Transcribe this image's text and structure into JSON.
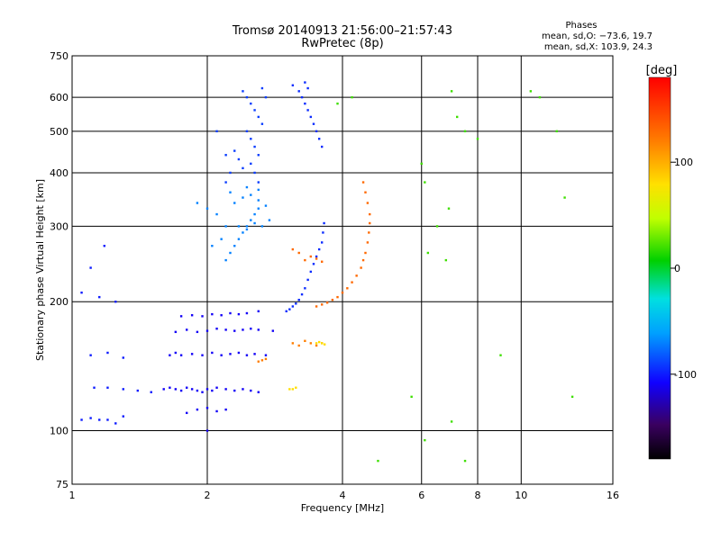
{
  "chart_data": {
    "type": "scatter",
    "title": "Tromsø 20140913 21:56:00–21:57:43",
    "subtitle": "RwPretec (8p)",
    "xlabel": "Frequency [MHz]",
    "ylabel": "Stationary phase Virtual Height [km]",
    "x_scale": "log",
    "y_scale": "log",
    "xlim": [
      1,
      16
    ],
    "ylim": [
      75,
      750
    ],
    "x_ticks": [
      1,
      2,
      4,
      6,
      8,
      10,
      16
    ],
    "y_ticks": [
      75,
      100,
      200,
      300,
      400,
      500,
      600,
      750
    ],
    "x_gridlines": [
      2,
      4,
      6,
      8,
      10
    ],
    "y_gridlines": [
      100,
      200,
      300,
      400,
      500,
      600
    ],
    "grid": true,
    "stats": {
      "title": "Phases",
      "line_o": "mean, sd,O: −73.6, 19.7",
      "line_x": "mean, sd,X: 103.9, 24.3"
    },
    "colorbar": {
      "label": "[deg]",
      "range": [
        -180,
        180
      ],
      "ticks": [
        100,
        0,
        -100
      ],
      "palette": "rainbow"
    },
    "series": [
      {
        "trace": "low-frequency echoes near 100–130 km",
        "phase": -100,
        "points": [
          [
            1.05,
            106
          ],
          [
            1.1,
            107
          ],
          [
            1.15,
            106
          ],
          [
            1.2,
            106
          ],
          [
            1.25,
            104
          ],
          [
            1.3,
            108
          ],
          [
            1.12,
            126
          ],
          [
            1.2,
            126
          ],
          [
            1.3,
            125
          ],
          [
            1.4,
            124
          ],
          [
            1.5,
            123
          ],
          [
            1.1,
            150
          ],
          [
            1.2,
            152
          ],
          [
            1.3,
            148
          ],
          [
            1.05,
            210
          ],
          [
            1.15,
            205
          ],
          [
            1.1,
            240
          ],
          [
            1.18,
            270
          ],
          [
            1.25,
            200
          ]
        ]
      },
      {
        "trace": "O-mode staircase 1.6–2.8 MHz",
        "phase": -110,
        "points": [
          [
            1.6,
            125
          ],
          [
            1.65,
            126
          ],
          [
            1.7,
            125
          ],
          [
            1.75,
            124
          ],
          [
            1.8,
            126
          ],
          [
            1.85,
            125
          ],
          [
            1.9,
            124
          ],
          [
            1.95,
            123
          ],
          [
            2.0,
            125
          ],
          [
            2.05,
            124
          ],
          [
            2.1,
            126
          ],
          [
            2.2,
            125
          ],
          [
            2.3,
            124
          ],
          [
            2.4,
            125
          ],
          [
            2.5,
            124
          ],
          [
            2.6,
            123
          ],
          [
            1.65,
            150
          ],
          [
            1.7,
            152
          ],
          [
            1.75,
            150
          ],
          [
            1.85,
            151
          ],
          [
            1.95,
            150
          ],
          [
            2.05,
            152
          ],
          [
            2.15,
            150
          ],
          [
            2.25,
            151
          ],
          [
            2.35,
            152
          ],
          [
            2.45,
            150
          ],
          [
            2.55,
            151
          ],
          [
            2.7,
            150
          ],
          [
            1.7,
            170
          ],
          [
            1.8,
            172
          ],
          [
            1.9,
            170
          ],
          [
            2.0,
            171
          ],
          [
            2.1,
            173
          ],
          [
            2.2,
            172
          ],
          [
            2.3,
            171
          ],
          [
            2.4,
            172
          ],
          [
            2.5,
            173
          ],
          [
            2.6,
            172
          ],
          [
            2.8,
            171
          ],
          [
            1.75,
            185
          ],
          [
            1.85,
            186
          ],
          [
            1.95,
            185
          ],
          [
            2.05,
            187
          ],
          [
            2.15,
            186
          ],
          [
            2.25,
            188
          ],
          [
            2.35,
            187
          ],
          [
            2.45,
            188
          ],
          [
            2.6,
            190
          ],
          [
            1.8,
            110
          ],
          [
            1.9,
            112
          ],
          [
            2.0,
            113
          ],
          [
            2.1,
            111
          ],
          [
            2.2,
            112
          ],
          [
            2.0,
            100
          ]
        ]
      },
      {
        "trace": "F-region echoes 250–350 km",
        "phase": -70,
        "points": [
          [
            2.2,
            250
          ],
          [
            2.25,
            260
          ],
          [
            2.3,
            270
          ],
          [
            2.35,
            280
          ],
          [
            2.4,
            290
          ],
          [
            2.45,
            300
          ],
          [
            2.5,
            310
          ],
          [
            2.55,
            320
          ],
          [
            2.6,
            330
          ],
          [
            2.3,
            340
          ],
          [
            2.4,
            350
          ],
          [
            2.5,
            355
          ],
          [
            2.6,
            345
          ],
          [
            2.7,
            335
          ],
          [
            2.35,
            300
          ],
          [
            2.45,
            295
          ],
          [
            2.55,
            305
          ],
          [
            2.65,
            300
          ],
          [
            2.75,
            310
          ],
          [
            2.2,
            300
          ],
          [
            2.1,
            320
          ],
          [
            2.15,
            280
          ],
          [
            2.0,
            330
          ],
          [
            1.9,
            340
          ],
          [
            2.05,
            270
          ],
          [
            2.25,
            360
          ],
          [
            2.45,
            370
          ],
          [
            2.6,
            365
          ]
        ]
      },
      {
        "trace": "upper echoes 400–650 km",
        "phase": -90,
        "points": [
          [
            2.4,
            620
          ],
          [
            2.45,
            600
          ],
          [
            2.5,
            580
          ],
          [
            2.55,
            560
          ],
          [
            2.6,
            540
          ],
          [
            2.65,
            520
          ],
          [
            2.45,
            500
          ],
          [
            2.5,
            480
          ],
          [
            2.55,
            460
          ],
          [
            2.6,
            440
          ],
          [
            2.5,
            420
          ],
          [
            2.55,
            400
          ],
          [
            2.6,
            380
          ],
          [
            2.3,
            450
          ],
          [
            2.35,
            430
          ],
          [
            2.4,
            410
          ],
          [
            2.2,
            440
          ],
          [
            2.25,
            400
          ],
          [
            2.1,
            500
          ],
          [
            2.2,
            380
          ],
          [
            2.7,
            600
          ],
          [
            2.65,
            630
          ]
        ]
      },
      {
        "trace": "O-mode trace 3.0–3.6 MHz",
        "phase": -95,
        "points": [
          [
            3.0,
            190
          ],
          [
            3.05,
            192
          ],
          [
            3.1,
            195
          ],
          [
            3.15,
            198
          ],
          [
            3.2,
            202
          ],
          [
            3.25,
            208
          ],
          [
            3.3,
            215
          ],
          [
            3.35,
            225
          ],
          [
            3.4,
            235
          ],
          [
            3.45,
            245
          ],
          [
            3.5,
            255
          ],
          [
            3.55,
            265
          ],
          [
            3.6,
            275
          ],
          [
            3.62,
            290
          ],
          [
            3.64,
            305
          ],
          [
            3.2,
            620
          ],
          [
            3.25,
            600
          ],
          [
            3.3,
            580
          ],
          [
            3.35,
            560
          ],
          [
            3.4,
            540
          ],
          [
            3.45,
            520
          ],
          [
            3.5,
            500
          ],
          [
            3.55,
            480
          ],
          [
            3.6,
            460
          ],
          [
            3.1,
            640
          ],
          [
            3.3,
            650
          ],
          [
            3.35,
            630
          ]
        ]
      },
      {
        "trace": "X-mode trace 3.5–4.6 MHz",
        "phase": 130,
        "points": [
          [
            3.5,
            195
          ],
          [
            3.6,
            197
          ],
          [
            3.7,
            199
          ],
          [
            3.8,
            202
          ],
          [
            3.9,
            205
          ],
          [
            4.0,
            210
          ],
          [
            4.1,
            215
          ],
          [
            4.2,
            222
          ],
          [
            4.3,
            230
          ],
          [
            4.4,
            240
          ],
          [
            4.45,
            250
          ],
          [
            4.5,
            260
          ],
          [
            4.55,
            275
          ],
          [
            4.58,
            290
          ],
          [
            4.6,
            305
          ],
          [
            4.6,
            320
          ],
          [
            4.55,
            340
          ],
          [
            4.5,
            360
          ],
          [
            4.45,
            380
          ],
          [
            3.3,
            250
          ],
          [
            3.4,
            255
          ],
          [
            3.5,
            252
          ],
          [
            3.6,
            248
          ],
          [
            3.2,
            260
          ],
          [
            3.1,
            265
          ]
        ]
      },
      {
        "trace": "low X-mode echoes",
        "phase": 120,
        "points": [
          [
            2.6,
            145
          ],
          [
            2.65,
            146
          ],
          [
            2.7,
            147
          ],
          [
            3.1,
            160
          ],
          [
            3.2,
            158
          ],
          [
            3.3,
            162
          ],
          [
            3.4,
            160
          ],
          [
            3.5,
            158
          ],
          [
            3.6,
            160
          ]
        ]
      },
      {
        "trace": "mid-phase echoes near 125 km and 160 km",
        "phase": 80,
        "points": [
          [
            3.05,
            125
          ],
          [
            3.1,
            125
          ],
          [
            3.15,
            126
          ],
          [
            3.5,
            160
          ],
          [
            3.55,
            161
          ],
          [
            3.6,
            160
          ],
          [
            3.65,
            159
          ]
        ]
      },
      {
        "trace": "scattered high-frequency echoes",
        "phase": 20,
        "points": [
          [
            6.0,
            420
          ],
          [
            6.1,
            380
          ],
          [
            6.5,
            300
          ],
          [
            6.8,
            250
          ],
          [
            7.0,
            620
          ],
          [
            7.2,
            540
          ],
          [
            7.5,
            500
          ],
          [
            8.0,
            480
          ],
          [
            6.2,
            260
          ],
          [
            6.9,
            330
          ],
          [
            9.0,
            150
          ],
          [
            10.5,
            620
          ],
          [
            11.0,
            600
          ],
          [
            12.0,
            500
          ],
          [
            12.5,
            350
          ],
          [
            13.0,
            120
          ],
          [
            6.1,
            95
          ],
          [
            7.0,
            105
          ],
          [
            7.5,
            85
          ],
          [
            4.8,
            85
          ],
          [
            5.7,
            120
          ],
          [
            4.2,
            600
          ],
          [
            3.9,
            580
          ]
        ]
      }
    ]
  }
}
